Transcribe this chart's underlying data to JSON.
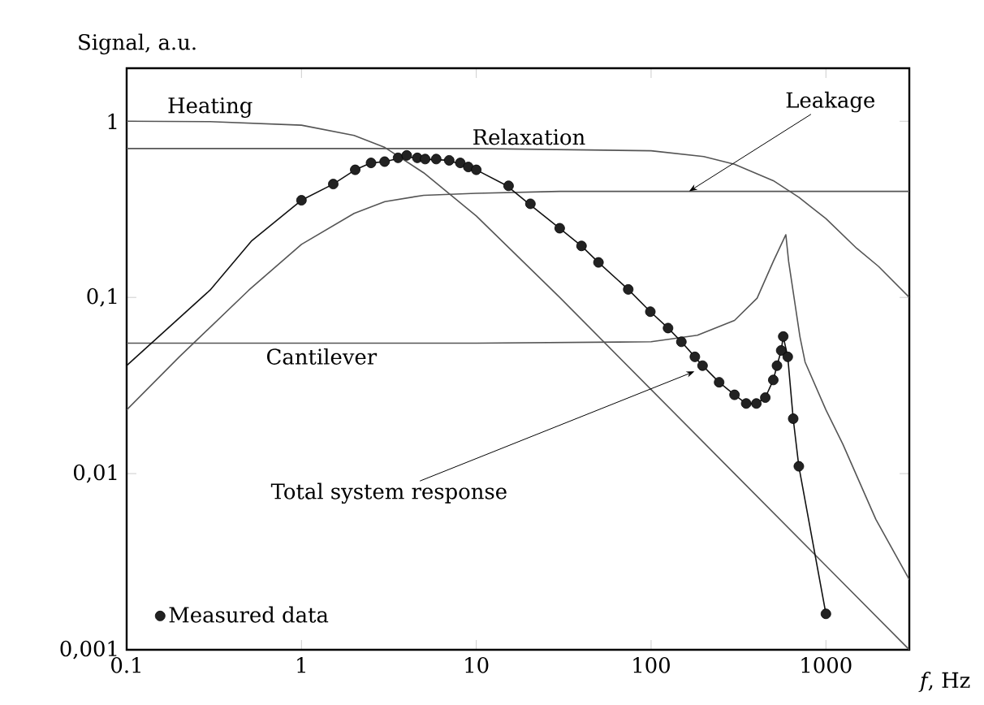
{
  "chart_data": {
    "type": "line",
    "xlabel": "*f*, Hz",
    "ylabel": "Signal, a.u.",
    "log": "xy",
    "grid": false,
    "legend": "bottom left",
    "marker": "circle",
    "xlim": [
      0.1,
      3000
    ],
    "ylim": [
      0.001,
      2
    ],
    "xticks": [
      {
        "value": 0.1,
        "label": "0.1"
      },
      1,
      10,
      100,
      1000
    ],
    "yticks": [
      {
        "value": 0.001,
        "label": "0,001"
      },
      {
        "value": 0.01,
        "label": "0,01"
      },
      {
        "value": 0.1,
        "label": "0,1"
      },
      1
    ],
    "series": [
      {
        "type": "line",
        "marker": "none",
        "color": "#555555",
        "x": [
          0.1,
          0.3,
          1,
          2,
          3,
          5,
          10,
          30,
          100,
          300,
          1000,
          3000
        ],
        "values": [
          1.0,
          0.995,
          0.95,
          0.83,
          0.71,
          0.51,
          0.29,
          0.1,
          0.03,
          0.01,
          0.003,
          0.001
        ]
      },
      {
        "type": "line",
        "marker": "none",
        "color": "#555555",
        "x": [
          0.1,
          10,
          100,
          200,
          300,
          500,
          700,
          1000,
          1500,
          2000,
          3000
        ],
        "values": [
          0.7,
          0.7,
          0.68,
          0.63,
          0.57,
          0.46,
          0.37,
          0.28,
          0.19,
          0.15,
          0.1
        ]
      },
      {
        "type": "line",
        "marker": "none",
        "color": "#555555",
        "x": [
          0.1,
          0.2,
          0.5,
          1,
          2,
          3,
          5,
          10,
          30,
          100,
          3000
        ],
        "values": [
          0.023,
          0.046,
          0.11,
          0.2,
          0.3,
          0.35,
          0.38,
          0.39,
          0.4,
          0.4,
          0.4
        ]
      },
      {
        "type": "line",
        "marker": "none",
        "color": "#555555",
        "x": [
          0.1,
          10,
          100,
          184,
          300,
          404,
          500,
          590,
          612,
          710,
          760,
          1000,
          1250,
          1930,
          3000
        ],
        "values": [
          0.055,
          0.055,
          0.056,
          0.061,
          0.074,
          0.099,
          0.16,
          0.227,
          0.16,
          0.06,
          0.043,
          0.023,
          0.0147,
          0.0055,
          0.0025
        ]
      },
      {
        "type": "line",
        "marker": "none",
        "color": "#111111",
        "x": [
          0.1,
          0.3,
          0.52,
          1,
          1.52,
          2.03,
          2.5,
          3,
          4,
          5,
          7,
          10,
          15,
          20,
          30,
          40,
          50,
          74,
          99,
          125,
          149,
          178,
          197,
          245,
          300,
          350,
          400,
          450,
          500,
          525,
          555,
          570,
          605,
          650,
          700,
          1000
        ],
        "values": [
          0.041,
          0.11,
          0.21,
          0.356,
          0.44,
          0.53,
          0.58,
          0.59,
          0.63,
          0.61,
          0.6,
          0.53,
          0.43,
          0.34,
          0.247,
          0.196,
          0.158,
          0.111,
          0.083,
          0.067,
          0.056,
          0.046,
          0.041,
          0.033,
          0.028,
          0.025,
          0.025,
          0.027,
          0.034,
          0.041,
          0.05,
          0.06,
          0.046,
          0.0205,
          0.011,
          0.0016
        ]
      },
      {
        "type": "scatter",
        "name": "Measured data",
        "color": "#222222",
        "x": [
          1,
          1.52,
          2.03,
          2.5,
          2.99,
          3.57,
          4.0,
          4.6,
          5.1,
          5.9,
          7.0,
          8.1,
          9.0,
          10,
          15.3,
          20.4,
          30,
          40,
          50,
          74,
          99,
          125,
          149,
          178,
          197,
          245,
          300,
          350,
          400,
          450,
          500,
          525,
          555,
          570,
          605,
          650,
          700,
          1000
        ],
        "values": [
          0.356,
          0.44,
          0.53,
          0.58,
          0.59,
          0.62,
          0.64,
          0.62,
          0.61,
          0.61,
          0.6,
          0.58,
          0.55,
          0.53,
          0.43,
          0.34,
          0.247,
          0.196,
          0.158,
          0.111,
          0.083,
          0.067,
          0.056,
          0.046,
          0.041,
          0.033,
          0.028,
          0.025,
          0.025,
          0.027,
          0.034,
          0.041,
          0.05,
          0.06,
          0.046,
          0.0205,
          0.011,
          0.0016
        ]
      }
    ],
    "annotations": [
      {
        "text": "Heating",
        "x": 0.3,
        "y": 1
      },
      {
        "text": "Relaxation",
        "x": 20,
        "y": 0.7
      },
      {
        "text": "Leakage",
        "x": 165,
        "y": 0.4
      },
      {
        "text": "Cantilever",
        "x": 1.3,
        "y": 0.055
      },
      {
        "text": "Total system response",
        "x": 177,
        "y": 0.038
      }
    ]
  }
}
